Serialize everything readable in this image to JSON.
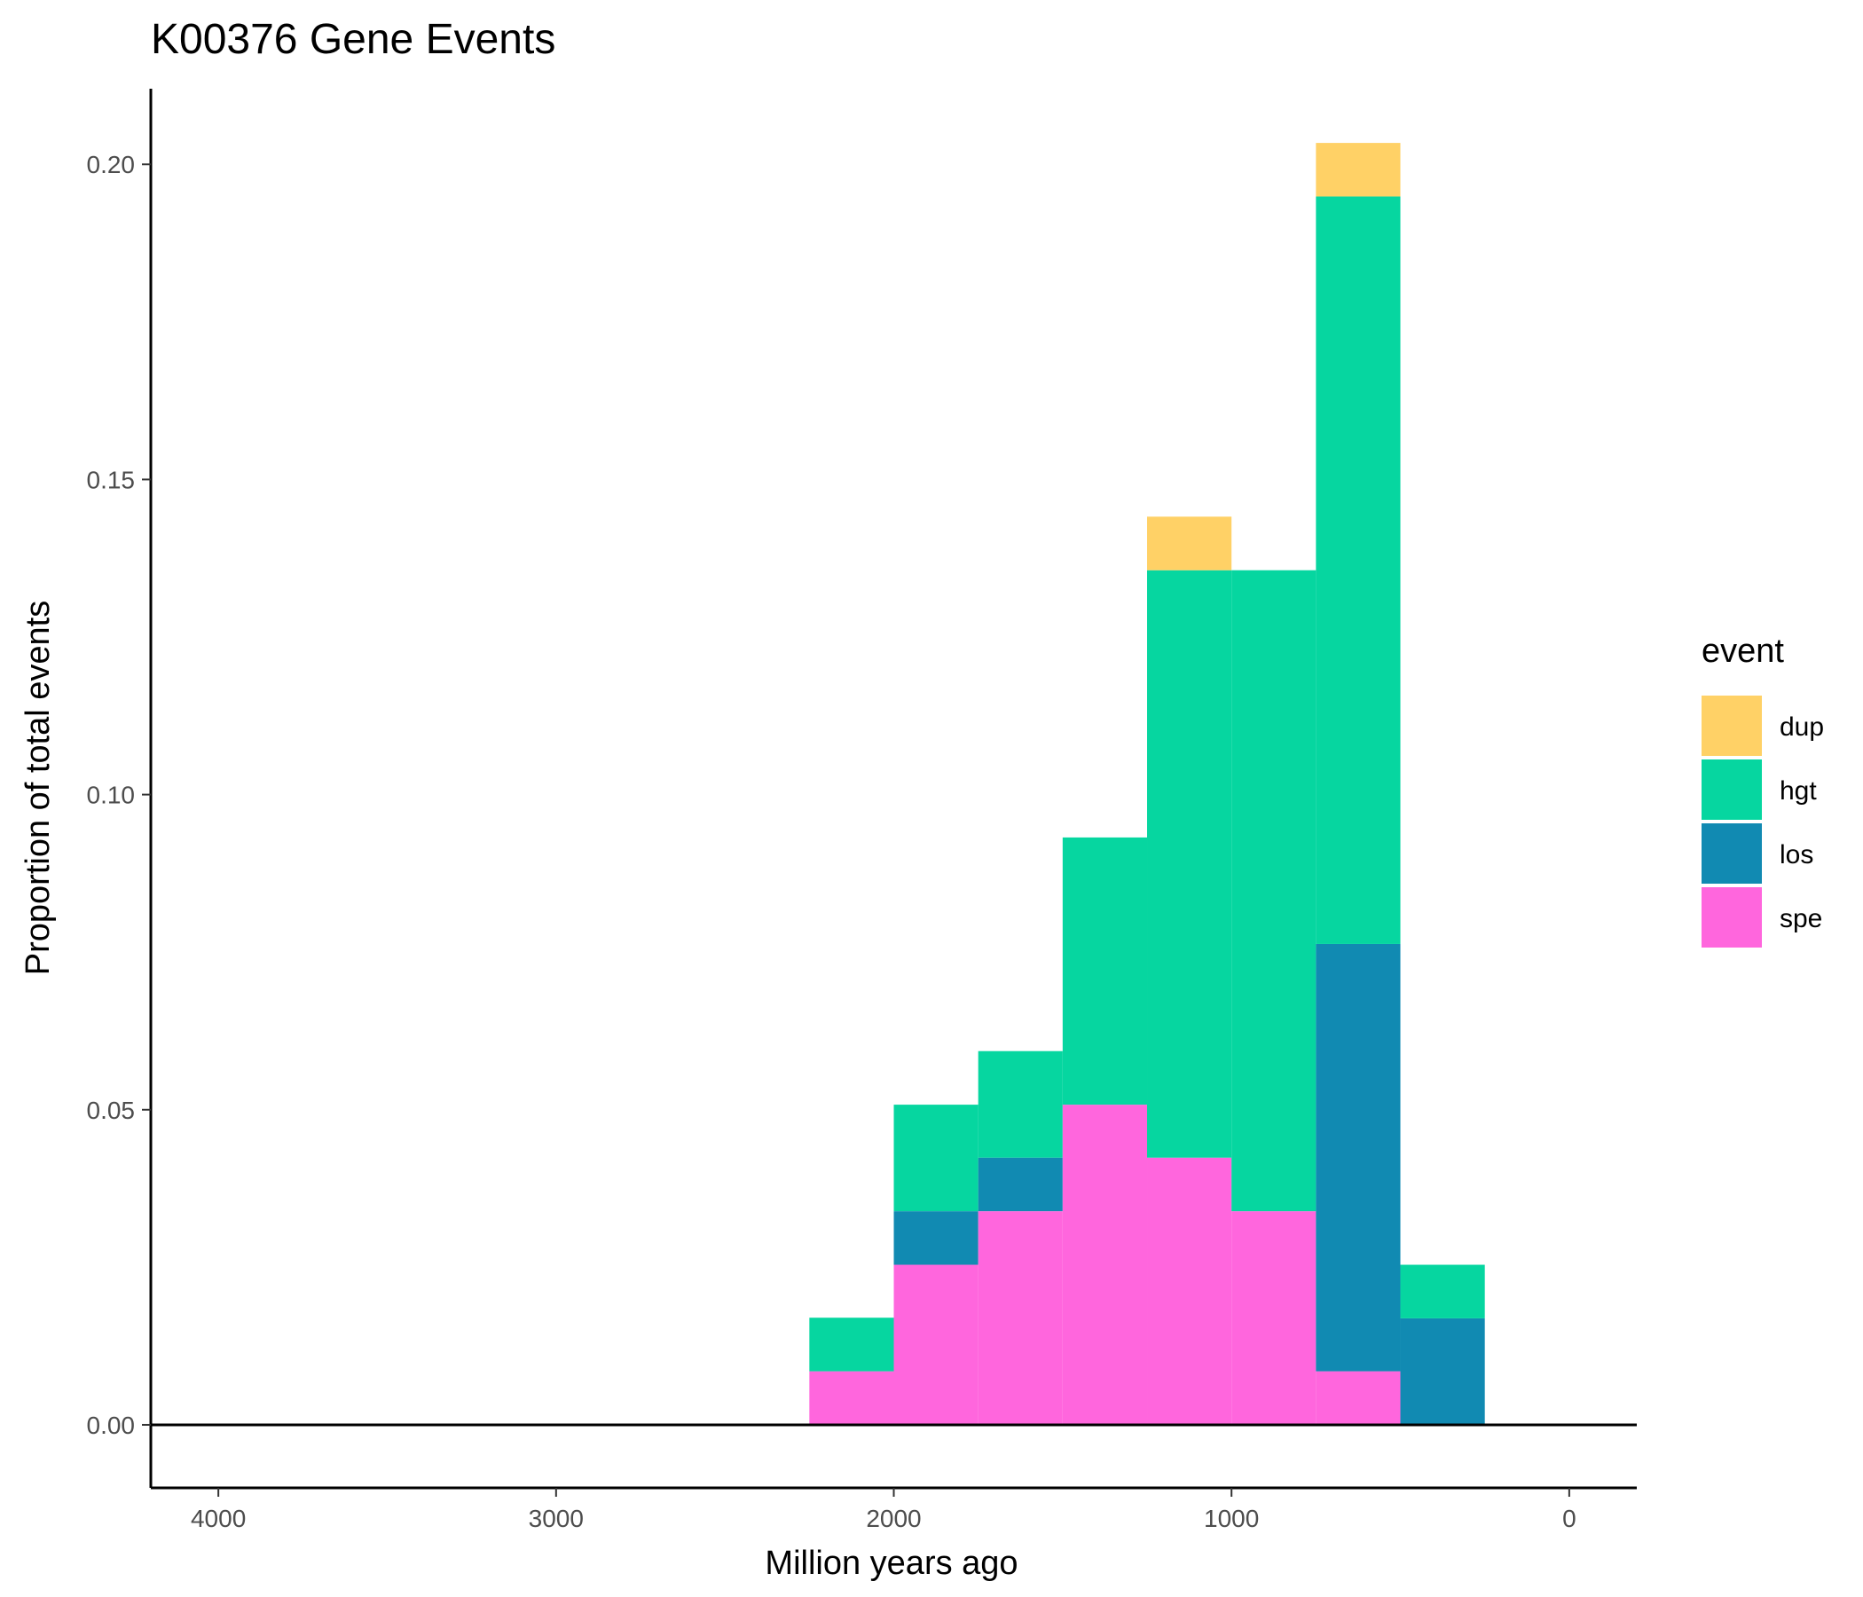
{
  "chart_data": {
    "type": "bar",
    "stacked": true,
    "title": "K00376 Gene Events",
    "xlabel": "Million years ago",
    "ylabel": "Proportion of total events",
    "x_reversed": true,
    "xlim": [
      4200,
      -200
    ],
    "ylim": [
      -0.01,
      0.212
    ],
    "xticks": [
      4000,
      3000,
      2000,
      1000,
      0
    ],
    "xtick_labels": [
      "4000",
      "3000",
      "2000",
      "1000",
      "0"
    ],
    "yticks": [
      0.0,
      0.05,
      0.1,
      0.15,
      0.2
    ],
    "ytick_labels": [
      "0.00",
      "0.05",
      "0.10",
      "0.15",
      "0.20"
    ],
    "bin_width": 250,
    "bin_centers": [
      2125,
      1875,
      1625,
      1375,
      1125,
      875,
      625,
      375
    ],
    "stack_order": [
      "spe",
      "los",
      "hgt",
      "dup"
    ],
    "legend": {
      "title": "event",
      "position": "right",
      "entries": [
        "dup",
        "hgt",
        "los",
        "spe"
      ]
    },
    "series": [
      {
        "name": "spe",
        "color": "#ff66dd",
        "values": [
          0.0085,
          0.0254,
          0.0339,
          0.0508,
          0.0424,
          0.0339,
          0.0085,
          0.0
        ]
      },
      {
        "name": "los",
        "color": "#118ab2",
        "values": [
          0.0,
          0.0085,
          0.0085,
          0.0,
          0.0,
          0.0,
          0.0678,
          0.0169
        ]
      },
      {
        "name": "hgt",
        "color": "#06d6a0",
        "values": [
          0.0085,
          0.0169,
          0.0169,
          0.0424,
          0.0932,
          0.1017,
          0.1186,
          0.0085
        ]
      },
      {
        "name": "dup",
        "color": "#ffd166",
        "values": [
          0.0,
          0.0,
          0.0,
          0.0,
          0.0085,
          0.0,
          0.0085,
          0.0
        ]
      }
    ],
    "hline_y": 0,
    "grid": false
  }
}
